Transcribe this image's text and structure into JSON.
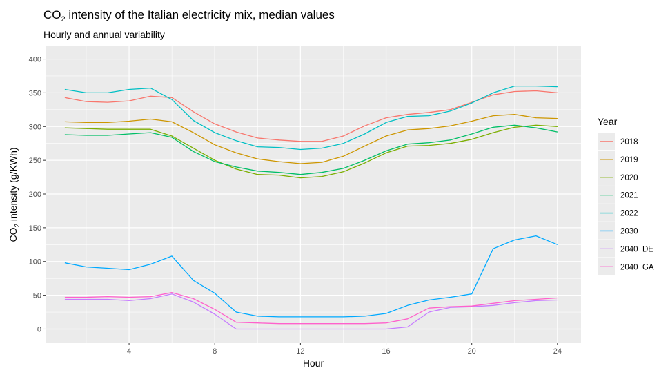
{
  "chart_data": {
    "type": "line",
    "title_main": "CO",
    "title_sub": "2",
    "title_rest": " intensity of the Italian electricity mix, median values",
    "subtitle": "Hourly and annual variability",
    "xlabel": "Hour",
    "ylabel_main": "CO",
    "ylabel_sub": "2",
    "ylabel_rest": " intensity (g/KWh)",
    "xlim": [
      0.1,
      25.1
    ],
    "ylim": [
      -21,
      420
    ],
    "x_ticks": [
      4,
      8,
      12,
      16,
      20,
      24
    ],
    "y_ticks": [
      0,
      50,
      100,
      150,
      200,
      250,
      300,
      350,
      400
    ],
    "x": [
      1,
      2,
      3,
      4,
      5,
      6,
      7,
      8,
      9,
      10,
      11,
      12,
      13,
      14,
      15,
      16,
      17,
      18,
      19,
      20,
      21,
      22,
      23,
      24
    ],
    "legend_title": "Year",
    "legend_position": "right",
    "grid": true,
    "series": [
      {
        "name": "2018",
        "color": "#F8766D",
        "values": [
          343,
          337,
          336,
          338,
          345,
          343,
          322,
          304,
          292,
          283,
          280,
          278,
          278,
          286,
          301,
          313,
          318,
          321,
          325,
          336,
          347,
          352,
          353,
          350
        ]
      },
      {
        "name": "2019",
        "color": "#CD9600",
        "values": [
          307,
          306,
          306,
          308,
          311,
          307,
          291,
          273,
          261,
          252,
          248,
          245,
          247,
          256,
          271,
          286,
          295,
          297,
          301,
          308,
          316,
          318,
          313,
          312
        ]
      },
      {
        "name": "2020",
        "color": "#7CAE00",
        "values": [
          298,
          297,
          296,
          296,
          296,
          286,
          268,
          250,
          237,
          229,
          228,
          224,
          226,
          233,
          246,
          261,
          271,
          272,
          275,
          281,
          291,
          299,
          302,
          300
        ]
      },
      {
        "name": "2021",
        "color": "#00BE67",
        "values": [
          288,
          287,
          287,
          289,
          291,
          284,
          263,
          248,
          240,
          234,
          232,
          229,
          232,
          238,
          250,
          264,
          274,
          276,
          280,
          289,
          299,
          302,
          298,
          292
        ]
      },
      {
        "name": "2022",
        "color": "#00BFC4",
        "values": [
          355,
          350,
          350,
          355,
          357,
          340,
          309,
          291,
          279,
          270,
          269,
          266,
          268,
          275,
          289,
          306,
          315,
          316,
          323,
          335,
          350,
          360,
          360,
          359
        ]
      },
      {
        "name": "2030",
        "color": "#00A9FF",
        "values": [
          98,
          92,
          90,
          88,
          96,
          108,
          72,
          53,
          25,
          19,
          18,
          18,
          18,
          18,
          19,
          23,
          35,
          43,
          47,
          52,
          119,
          132,
          138,
          125
        ]
      },
      {
        "name": "2040_DE",
        "color": "#C77CFF",
        "values": [
          44,
          44,
          44,
          42,
          45,
          52,
          40,
          22,
          0,
          0,
          0,
          0,
          0,
          0,
          0,
          0,
          3,
          25,
          32,
          33,
          35,
          39,
          42,
          43
        ]
      },
      {
        "name": "2040_GA",
        "color": "#FF61CC",
        "values": [
          47,
          47,
          48,
          47,
          48,
          54,
          45,
          29,
          10,
          9,
          8,
          8,
          8,
          8,
          8,
          9,
          15,
          31,
          33,
          34,
          38,
          42,
          44,
          46
        ]
      }
    ]
  }
}
